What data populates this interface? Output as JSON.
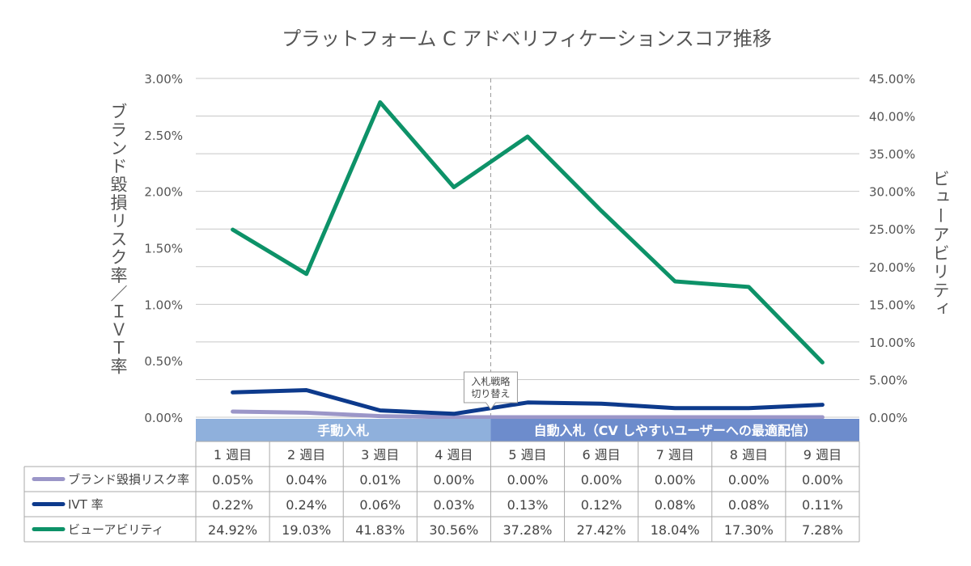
{
  "chart_data": {
    "type": "line",
    "title": "プラットフォーム C アドベリフィケーションスコア推移",
    "categories": [
      "1 週目",
      "2 週目",
      "3 週目",
      "4 週目",
      "5 週目",
      "6 週目",
      "7 週目",
      "8 週目",
      "9 週目"
    ],
    "left_axis": {
      "label": "ブランド毀損リスク率／ＩＶＴ率",
      "range": [
        0,
        3
      ],
      "ticks": [
        "3.00%",
        "2.50%",
        "2.00%",
        "1.50%",
        "1.00%",
        "0.50%",
        "0.00%"
      ]
    },
    "right_axis": {
      "label": "ビューアビリティ",
      "range": [
        0,
        45
      ],
      "ticks": [
        "45.00%",
        "40.00%",
        "35.00%",
        "30.00%",
        "25.00%",
        "20.00%",
        "15.00%",
        "10.00%",
        "5.00%",
        "0.00%"
      ]
    },
    "series": [
      {
        "name": "ブランド毀損リスク率",
        "axis": "left",
        "color": "#9b96c8",
        "values": [
          0.05,
          0.04,
          0.01,
          0.0,
          0.0,
          0.0,
          0.0,
          0.0,
          0.0
        ],
        "labels": [
          "0.05%",
          "0.04%",
          "0.01%",
          "0.00%",
          "0.00%",
          "0.00%",
          "0.00%",
          "0.00%",
          "0.00%"
        ]
      },
      {
        "name": "IVT 率",
        "axis": "left",
        "color": "#0d3a8c",
        "values": [
          0.22,
          0.24,
          0.06,
          0.03,
          0.13,
          0.12,
          0.08,
          0.08,
          0.11
        ],
        "labels": [
          "0.22%",
          "0.24%",
          "0.06%",
          "0.03%",
          "0.13%",
          "0.12%",
          "0.08%",
          "0.08%",
          "0.11%"
        ]
      },
      {
        "name": "ビューアビリティ",
        "axis": "right",
        "color": "#0d9268",
        "values": [
          24.92,
          19.03,
          41.83,
          30.56,
          37.28,
          27.42,
          18.04,
          17.3,
          7.28
        ],
        "labels": [
          "24.92%",
          "19.03%",
          "41.83%",
          "30.56%",
          "37.28%",
          "27.42%",
          "18.04%",
          "17.30%",
          "7.28%"
        ]
      }
    ],
    "phases": [
      {
        "label": "手動入札",
        "from": 0,
        "to": 3,
        "color": "#8fb0dc"
      },
      {
        "label": "自動入札（CV しやすいユーザーへの最適配信）",
        "from": 4,
        "to": 8,
        "color": "#6d8ccc"
      }
    ],
    "annotation": {
      "lines": [
        "入札戦略",
        "切り替え"
      ],
      "between": [
        3,
        4
      ]
    },
    "grid": true,
    "legend": "table-bottom"
  }
}
